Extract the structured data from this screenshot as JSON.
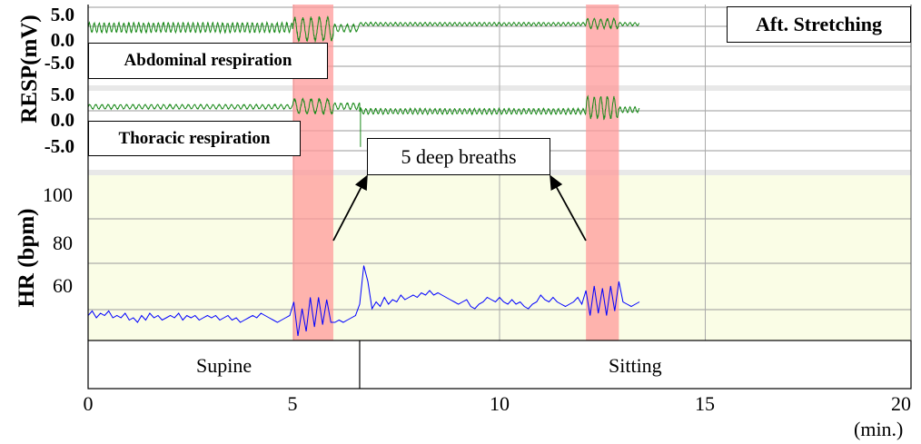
{
  "chart_data": [
    {
      "type": "line",
      "title": "Abdominal respiration",
      "ylabel": "RESP(mV)",
      "yticks": [
        "5.0",
        "0.0",
        "-5.0"
      ],
      "ylim": [
        -8,
        7
      ],
      "series": [
        {
          "name": "Abdominal respiration",
          "color": "#1a8a1a",
          "segments": [
            {
              "t0": 0,
              "t1": 4.97,
              "base": 2.3,
              "amp": 0.9,
              "period": 0.12
            },
            {
              "t0": 4.97,
              "t1": 5.96,
              "base": 2.0,
              "amp": 2.2,
              "period": 0.2
            },
            {
              "t0": 5.96,
              "t1": 6.6,
              "base": 2.2,
              "amp": 0.7,
              "period": 0.15
            },
            {
              "t0": 6.6,
              "t1": 12.1,
              "base": 3.0,
              "amp": 0.3,
              "period": 0.12
            },
            {
              "t0": 12.1,
              "t1": 12.9,
              "base": 3.1,
              "amp": 0.9,
              "period": 0.16
            },
            {
              "t0": 12.9,
              "t1": 13.4,
              "base": 3.0,
              "amp": 0.3,
              "period": 0.12
            }
          ]
        }
      ]
    },
    {
      "type": "line",
      "title": "Thoracic respiration",
      "yticks": [
        "5.0",
        "0.0",
        "-5.0"
      ],
      "ylim": [
        -8,
        7
      ],
      "series": [
        {
          "name": "Thoracic respiration",
          "color": "#1a8a1a",
          "segments": [
            {
              "t0": 0,
              "t1": 4.97,
              "base": 2.4,
              "amp": 0.4,
              "period": 0.15
            },
            {
              "t0": 4.97,
              "t1": 5.96,
              "base": 2.5,
              "amp": 1.4,
              "period": 0.2
            },
            {
              "t0": 5.96,
              "t1": 6.6,
              "base": 2.5,
              "amp": 0.6,
              "period": 0.15
            },
            {
              "t0": 6.6,
              "t1": 12.1,
              "base": 1.5,
              "amp": 0.5,
              "period": 0.12
            },
            {
              "t0": 12.1,
              "t1": 12.9,
              "base": 2.2,
              "amp": 2.0,
              "period": 0.16
            },
            {
              "t0": 12.9,
              "t1": 13.4,
              "base": 1.8,
              "amp": 0.5,
              "period": 0.12
            }
          ],
          "artifact": {
            "t": 6.62,
            "value": -5.5
          }
        }
      ]
    },
    {
      "type": "line",
      "ylabel": "HR (bpm)",
      "yticks": [
        "100",
        "80",
        "60"
      ],
      "series": [
        {
          "name": "HR",
          "color": "#0000ff",
          "t_start": 0,
          "t_step": 0.1,
          "values": [
            47,
            49,
            46,
            48,
            47,
            49,
            46,
            47,
            46,
            48,
            45,
            46,
            44,
            47,
            45,
            48,
            46,
            47,
            45,
            46,
            47,
            46,
            48,
            45,
            47,
            46,
            47,
            45,
            46,
            47,
            46,
            47,
            45,
            46,
            47,
            45,
            46,
            44,
            45,
            46,
            47,
            46,
            48,
            47,
            46,
            45,
            44,
            45,
            46,
            47,
            53,
            38,
            50,
            40,
            55,
            42,
            55,
            43,
            54,
            44,
            44,
            45,
            44,
            45,
            46,
            47,
            52,
            69,
            62,
            50,
            53,
            51,
            55,
            52,
            54,
            53,
            56,
            54,
            55,
            56,
            55,
            57,
            56,
            58,
            56,
            57,
            56,
            55,
            54,
            53,
            52,
            53,
            54,
            51,
            50,
            52,
            53,
            55,
            54,
            53,
            55,
            53,
            52,
            54,
            52,
            53,
            51,
            50,
            52,
            53,
            56,
            54,
            53,
            55,
            53,
            52,
            51,
            52,
            53,
            55,
            52,
            58,
            47,
            60,
            48,
            59,
            47,
            60,
            49,
            62,
            53,
            52,
            51,
            52,
            53
          ]
        }
      ]
    }
  ],
  "x_axis": {
    "ticks": [
      "0",
      "5",
      "10",
      "15",
      "20"
    ],
    "tick_values": [
      0,
      5,
      10,
      15,
      20
    ],
    "xlim": [
      0,
      20
    ],
    "unit": "(min.)"
  },
  "deep_breath_intervals": [
    [
      4.97,
      5.96
    ],
    [
      12.1,
      12.9
    ]
  ],
  "states": [
    {
      "label": "Supine",
      "t0": 0,
      "t1": 6.6
    },
    {
      "label": "Sitting",
      "t0": 6.6,
      "t1": 20
    }
  ],
  "annotations": {
    "condition": "Aft. Stretching",
    "deep_breaths": "5 deep breaths"
  },
  "colors": {
    "band": "#ff9999",
    "hr_bg": "#fafde6",
    "resp": "#1a8a1a",
    "hr": "#0000ff"
  }
}
